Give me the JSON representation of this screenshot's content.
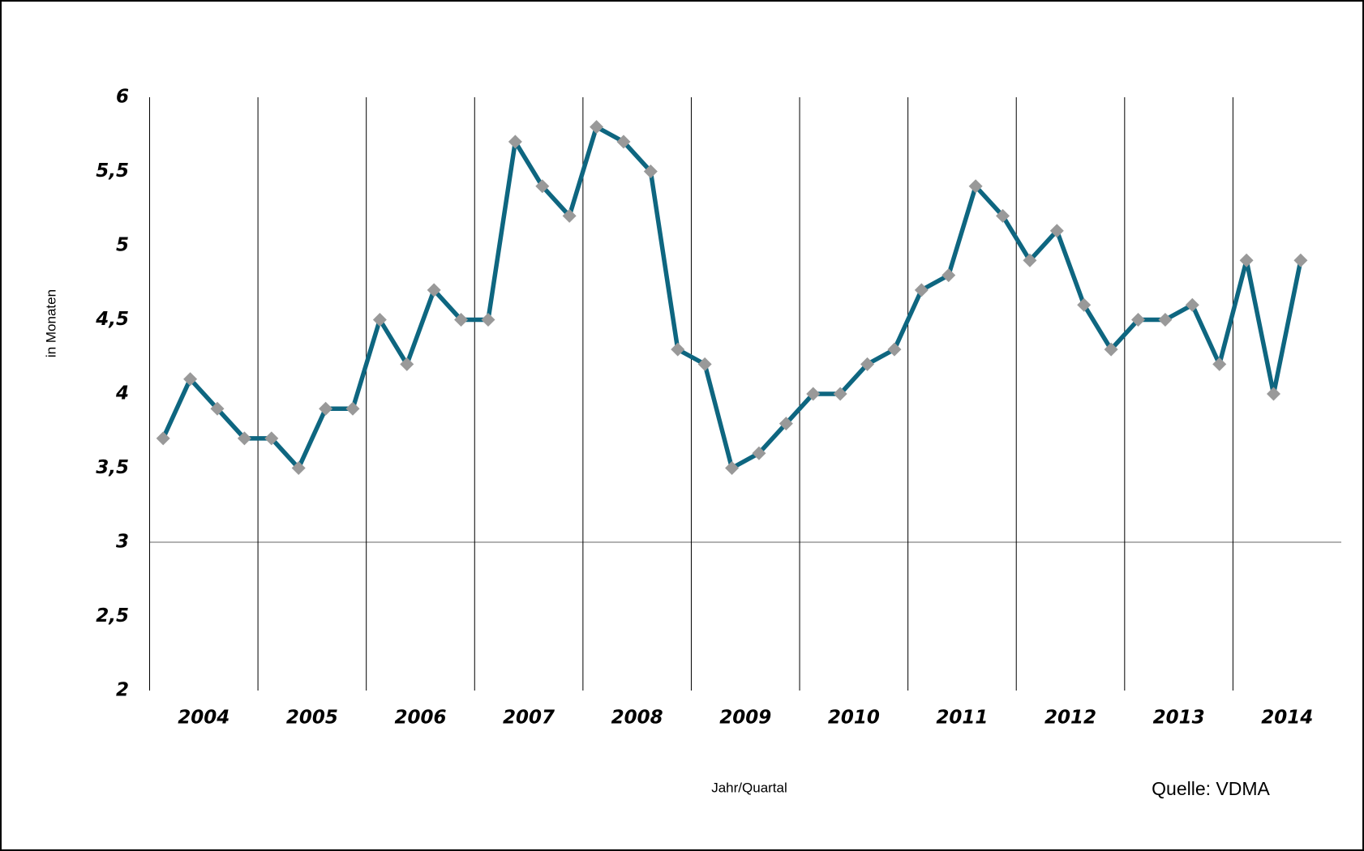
{
  "chart_data": {
    "type": "line",
    "x_label": "Jahr/Quartal",
    "y_label": "in Monaten",
    "source": "Quelle: VDMA",
    "categories": [
      "2004",
      null,
      null,
      null,
      "2005",
      null,
      null,
      null,
      "2006",
      null,
      null,
      null,
      "2007",
      null,
      null,
      null,
      "2008",
      null,
      null,
      null,
      "2009",
      null,
      null,
      null,
      "2010",
      null,
      null,
      null,
      "2011",
      null,
      null,
      null,
      "2012",
      null,
      null,
      null,
      "2013",
      null,
      null,
      null,
      "2014",
      null,
      null
    ],
    "values": [
      3.7,
      4.1,
      3.9,
      3.7,
      3.7,
      3.5,
      3.9,
      3.9,
      4.5,
      4.2,
      4.7,
      4.5,
      4.5,
      5.7,
      5.4,
      5.2,
      5.8,
      5.7,
      5.5,
      4.3,
      4.2,
      3.5,
      3.6,
      3.8,
      4.0,
      4.0,
      4.2,
      4.3,
      4.7,
      4.8,
      5.4,
      5.2,
      4.9,
      5.1,
      4.6,
      4.3,
      4.5,
      4.5,
      4.6,
      4.2,
      4.9,
      4.0,
      4.9
    ],
    "color": "#0e6680",
    "marker_color": "#999999",
    "ylim": [
      2,
      6
    ],
    "yticks": [
      2,
      {
        "value": 2.5,
        "label": "2,5"
      },
      3,
      {
        "value": 3.5,
        "label": "3,5"
      },
      4,
      {
        "value": 4.5,
        "label": "4,5"
      },
      5,
      {
        "value": 5.5,
        "label": "5,5"
      },
      6
    ],
    "reference_line": 3
  }
}
